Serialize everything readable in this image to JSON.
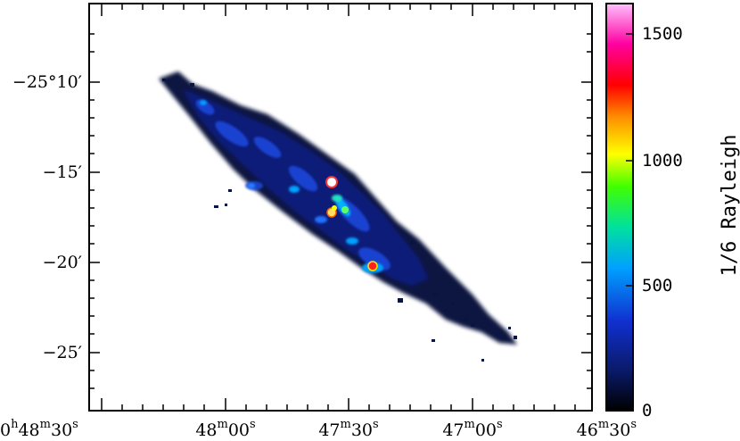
{
  "image": {
    "kind": "astronomical intensity map",
    "description_visible": "elongated emission map with colour scale"
  },
  "axes": {
    "y_ticks": [
      {
        "text": "−25°10′"
      },
      {
        "text": "−15′"
      },
      {
        "text": "−20′"
      },
      {
        "text": "−25′"
      }
    ],
    "x_ticks": [
      {
        "h": "0",
        "h_unit": "h",
        "m": "48",
        "m_unit": "m",
        "s": "30",
        "s_unit": "s"
      },
      {
        "m": "48",
        "m_unit": "m",
        "s": "00",
        "s_unit": "s"
      },
      {
        "m": "47",
        "m_unit": "m",
        "s": "30",
        "s_unit": "s"
      },
      {
        "m": "47",
        "m_unit": "m",
        "s": "00",
        "s_unit": "s"
      },
      {
        "m": "46",
        "m_unit": "m",
        "s": "30",
        "s_unit": "s"
      }
    ]
  },
  "colorbar": {
    "label": "1/6 Rayleigh",
    "ticks": [
      "1500",
      "1000",
      "500",
      "0"
    ],
    "range": [
      0,
      1620
    ],
    "colors": [
      "#000000",
      "#0a1a6a",
      "#1030d0",
      "#00a0ff",
      "#00e0a0",
      "#40ff00",
      "#ffff00",
      "#ff9000",
      "#ff0000",
      "#ff00a0",
      "#ffc0ff"
    ]
  }
}
